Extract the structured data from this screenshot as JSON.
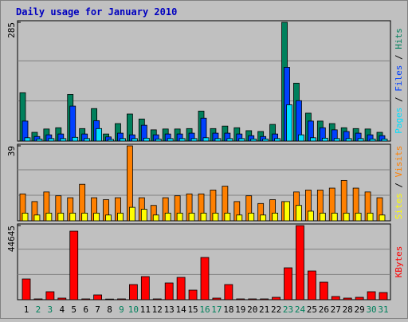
{
  "chart_data": {
    "type": "bar",
    "title": "Daily usage for January 2010",
    "categories": [
      "1",
      "2",
      "3",
      "4",
      "5",
      "6",
      "7",
      "8",
      "9",
      "10",
      "11",
      "12",
      "13",
      "14",
      "15",
      "16",
      "17",
      "18",
      "19",
      "20",
      "21",
      "22",
      "23",
      "24",
      "25",
      "26",
      "27",
      "28",
      "29",
      "30",
      "31"
    ],
    "category_colors": [
      "#000000",
      "#00805c",
      "#00805c",
      "#000000",
      "#000000",
      "#000000",
      "#000000",
      "#000000",
      "#00805c",
      "#00805c",
      "#000000",
      "#000000",
      "#000000",
      "#000000",
      "#000000",
      "#00805c",
      "#00805c",
      "#000000",
      "#000000",
      "#000000",
      "#000000",
      "#000000",
      "#00805c",
      "#00805c",
      "#000000",
      "#000000",
      "#000000",
      "#000000",
      "#000000",
      "#00805c",
      "#00805c"
    ],
    "label_separator": " / ",
    "panels": [
      {
        "ylim": [
          0,
          285
        ],
        "yticks": [
          285
        ],
        "series": [
          {
            "name": "Pages",
            "color": "#00e0ff",
            "values": [
              8,
              5,
              6,
              6,
              9,
              6,
              30,
              4,
              6,
              6,
              7,
              5,
              6,
              6,
              6,
              8,
              6,
              6,
              6,
              5,
              5,
              6,
              87,
              15,
              8,
              7,
              6,
              6,
              6,
              5,
              5
            ]
          },
          {
            "name": "Files",
            "color": "#0040ff",
            "values": [
              48,
              11,
              15,
              17,
              84,
              17,
              49,
              10,
              19,
              15,
              38,
              15,
              17,
              17,
              19,
              55,
              19,
              19,
              17,
              13,
              11,
              17,
              177,
              97,
              48,
              32,
              27,
              23,
              19,
              15,
              13
            ]
          },
          {
            "name": "Hits",
            "color": "#00805c",
            "values": [
              116,
              21,
              29,
              32,
              112,
              30,
              78,
              17,
              42,
              65,
              53,
              27,
              29,
              29,
              30,
              72,
              30,
              36,
              32,
              25,
              23,
              40,
              285,
              139,
              67,
              48,
              42,
              32,
              30,
              29,
              21
            ]
          }
        ]
      },
      {
        "ylim": [
          0,
          39
        ],
        "yticks": [
          39
        ],
        "series": [
          {
            "name": "Sites",
            "color": "#ffff00",
            "values": [
              4,
              3,
              4,
              4,
              4,
              4,
              4,
              3,
              4,
              7,
              6,
              3,
              4,
              4,
              4,
              4,
              4,
              4,
              3,
              4,
              3,
              4,
              10,
              8,
              5,
              4,
              4,
              4,
              4,
              4,
              3
            ]
          },
          {
            "name": "Visits",
            "color": "#ff8000",
            "values": [
              14,
              10,
              15,
              13,
              12,
              19,
              12,
              11,
              12,
              39,
              12,
              8,
              12,
              13,
              14,
              14,
              16,
              18,
              10,
              13,
              9,
              11,
              10,
              15,
              16,
              16,
              17,
              21,
              17,
              15,
              12
            ]
          }
        ]
      },
      {
        "ylim": [
          0,
          44645
        ],
        "yticks": [
          44645
        ],
        "series": [
          {
            "name": "KBytes",
            "color": "#ff0000",
            "values": [
              12480,
              480,
              4800,
              960,
              41280,
              480,
              2880,
              400,
              480,
              9120,
              13920,
              480,
              10080,
              13440,
              5760,
              25440,
              960,
              9120,
              480,
              480,
              480,
              1440,
              19200,
              44645,
              17280,
              10560,
              1920,
              960,
              1440,
              4800,
              4320
            ]
          }
        ]
      }
    ]
  }
}
